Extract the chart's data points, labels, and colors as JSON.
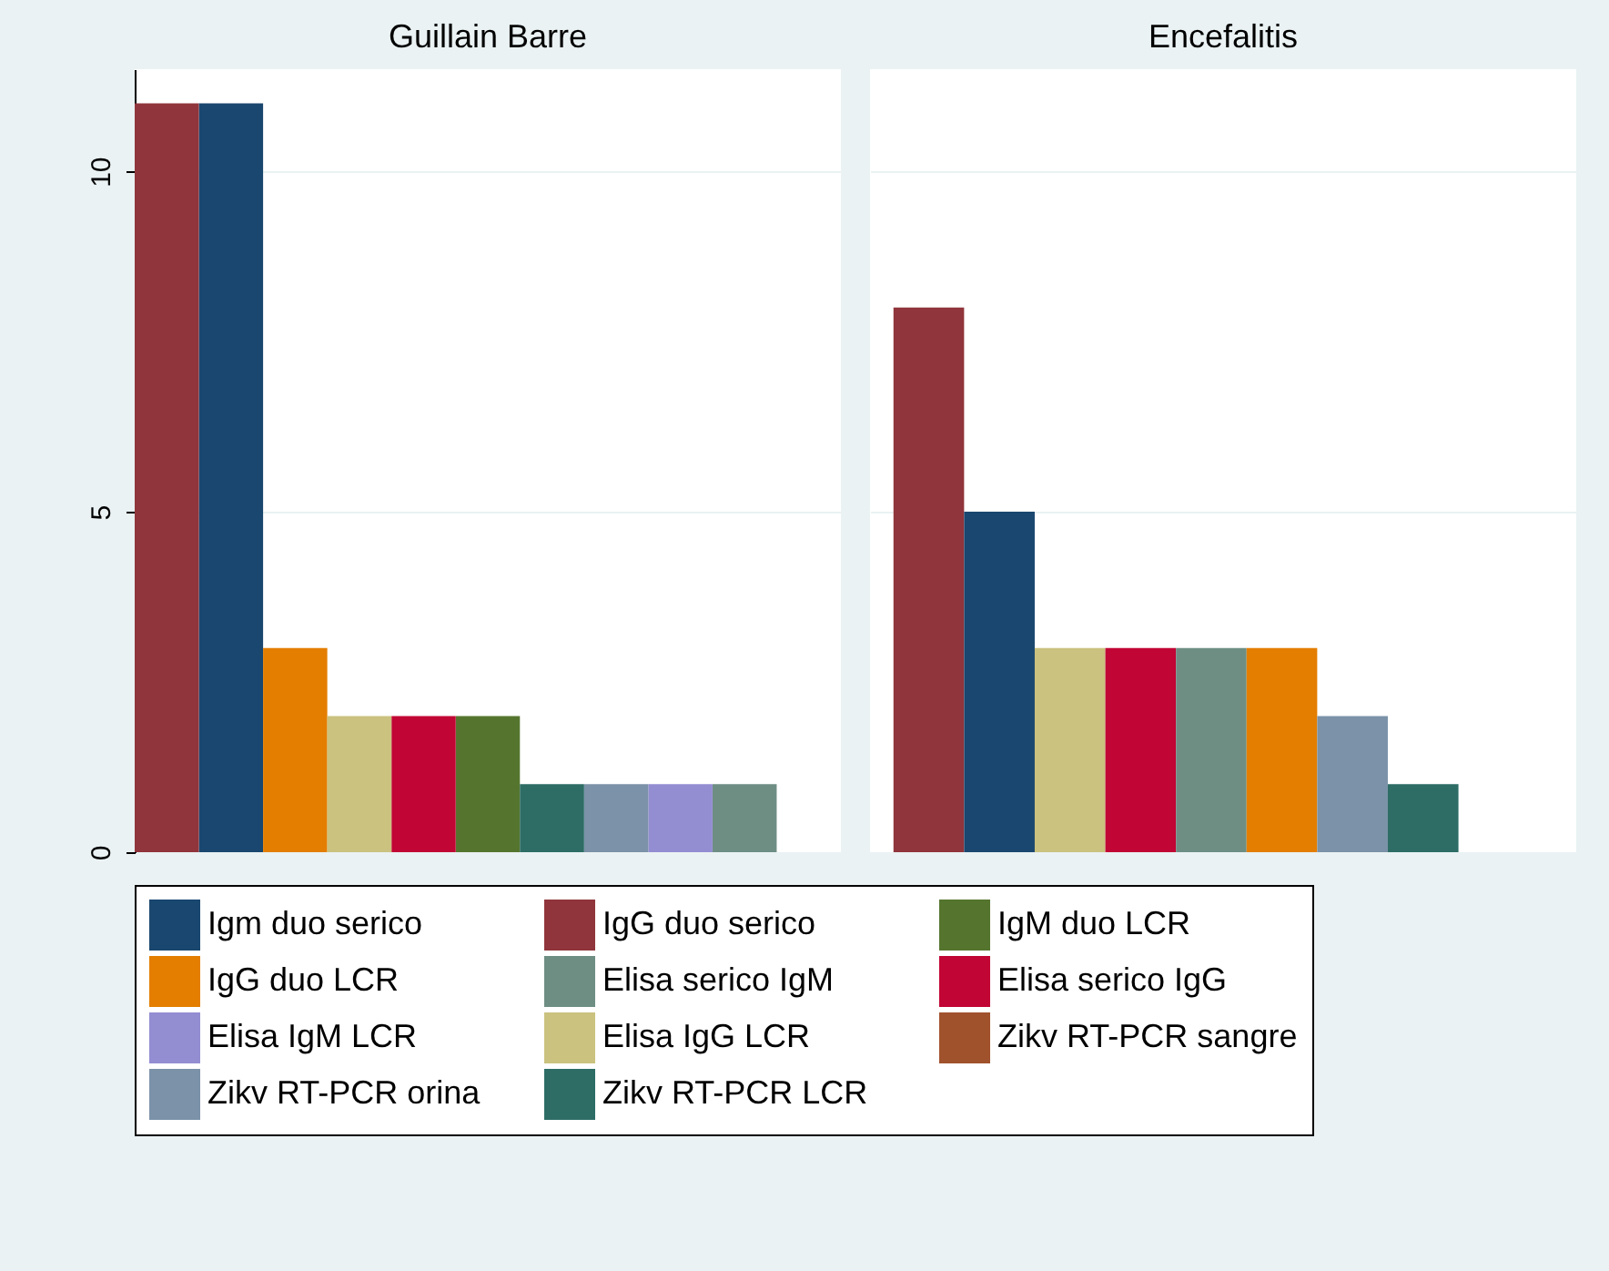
{
  "chart_data": [
    {
      "type": "bar",
      "title": "Guillain Barre",
      "legend": "bottom",
      "grid": "y",
      "tick_labels": "y",
      "ylim": [
        0,
        11.5
      ],
      "yticks": [
        0,
        5,
        10
      ],
      "categories": [
        null,
        null,
        null,
        null,
        null,
        null,
        null,
        null,
        null,
        null,
        null
      ],
      "series": [
        {
          "name": "Igm duo serico",
          "color": "#1a476f",
          "values": [
            null,
            11,
            null,
            null,
            null,
            null,
            null,
            null,
            null,
            null,
            null
          ]
        },
        {
          "name": "IgG duo serico",
          "color": "#90353b",
          "values": [
            11,
            null,
            null,
            null,
            null,
            null,
            null,
            null,
            null,
            null,
            null
          ]
        },
        {
          "name": "IgM duo LCR",
          "color": "#55752f",
          "values": [
            null,
            null,
            null,
            null,
            null,
            2,
            null,
            null,
            null,
            null,
            null
          ]
        },
        {
          "name": "IgG duo LCR",
          "color": "#e37e00",
          "values": [
            null,
            null,
            3,
            null,
            null,
            null,
            null,
            null,
            null,
            null,
            null
          ]
        },
        {
          "name": "Elisa serico IgM",
          "color": "#6e8e84",
          "values": [
            null,
            null,
            null,
            null,
            null,
            null,
            null,
            null,
            null,
            1,
            null
          ]
        },
        {
          "name": "Elisa serico IgG",
          "color": "#c10534",
          "values": [
            null,
            null,
            null,
            null,
            2,
            null,
            null,
            null,
            null,
            null,
            null
          ]
        },
        {
          "name": "Elisa IgM LCR",
          "color": "#938dd2",
          "values": [
            null,
            null,
            null,
            null,
            null,
            null,
            null,
            null,
            1,
            null,
            null
          ]
        },
        {
          "name": "Elisa IgG LCR",
          "color": "#cac27e",
          "values": [
            null,
            null,
            null,
            2,
            null,
            null,
            null,
            null,
            null,
            null,
            null
          ]
        },
        {
          "name": "Zikv RT-PCR sangre",
          "color": "#a0522d",
          "values": [
            null,
            null,
            null,
            null,
            null,
            null,
            null,
            null,
            null,
            null,
            null
          ]
        },
        {
          "name": "Zikv RT-PCR orina",
          "color": "#7b92a8",
          "values": [
            null,
            null,
            null,
            null,
            null,
            null,
            null,
            1,
            null,
            null,
            null
          ]
        },
        {
          "name": "Zikv RT-PCR LCR",
          "color": "#2d6d66",
          "values": [
            null,
            null,
            null,
            null,
            null,
            null,
            1,
            null,
            null,
            null,
            null
          ]
        }
      ]
    },
    {
      "type": "bar",
      "title": "Encefalitis",
      "grid": "y",
      "tick_labels": false,
      "ylim": [
        0,
        11.5
      ],
      "yticks": [
        0,
        5,
        10
      ],
      "categories": [
        null,
        null,
        null,
        null,
        null,
        null,
        null,
        null
      ],
      "values": [
        8,
        5,
        3,
        3,
        3,
        3,
        2,
        1
      ],
      "colors": [
        "#90353b",
        "#1a476f",
        "#cac27e",
        "#c10534",
        "#6e8e84",
        "#e37e00",
        "#7b92a8",
        "#2d6d66"
      ]
    }
  ]
}
